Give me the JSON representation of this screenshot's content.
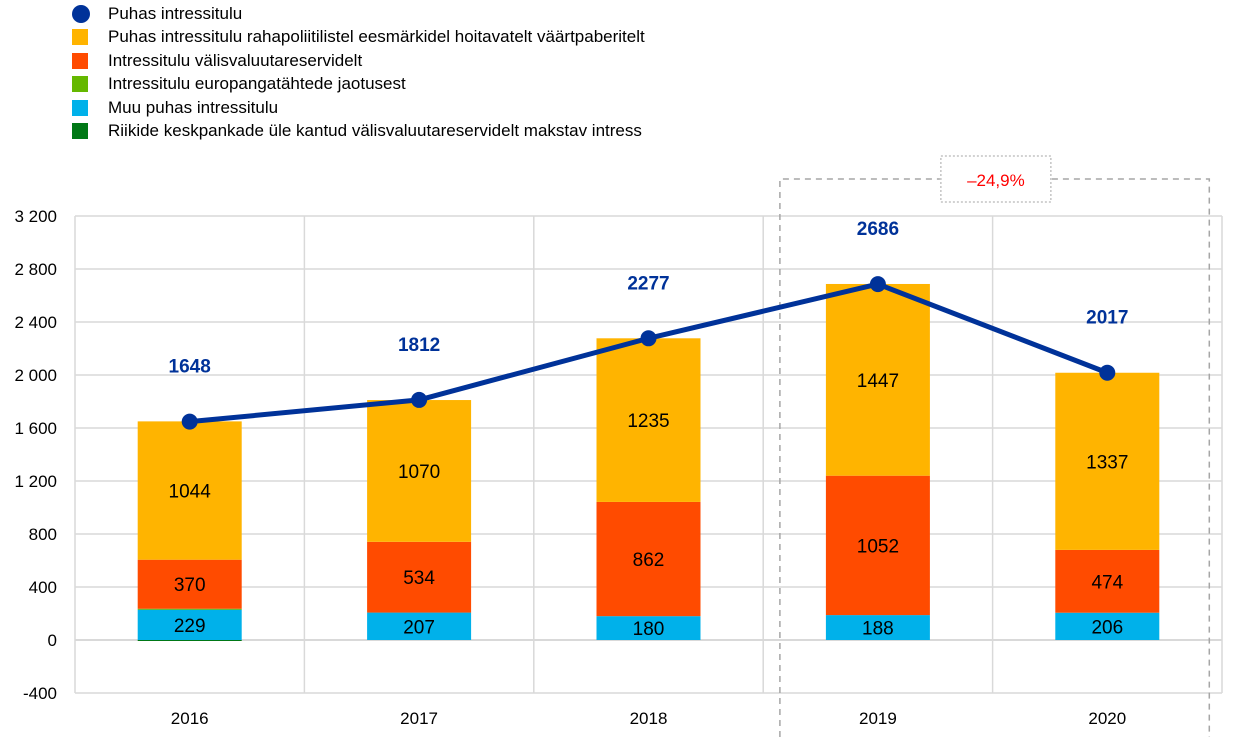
{
  "chart_data": {
    "type": "bar",
    "stacked": true,
    "categories": [
      "2016",
      "2017",
      "2018",
      "2019",
      "2020"
    ],
    "ylim": [
      -400,
      3200
    ],
    "yticks": [
      -400,
      0,
      400,
      800,
      1200,
      1600,
      2000,
      2400,
      2800,
      3200
    ],
    "ytick_labels": [
      "-400",
      "0",
      "400",
      "800",
      "1 200",
      "1 600",
      "2 000",
      "2 400",
      "2 800",
      "3 200"
    ],
    "grid": true,
    "legend_position": "top-left",
    "series": [
      {
        "name": "Muu  puhas intressitulu",
        "color": "#00B1EA",
        "values": [
          229,
          207,
          180,
          188,
          206
        ],
        "labels": [
          "229",
          "207",
          "180",
          "188",
          "206"
        ]
      },
      {
        "name": "Intressitulu europangatähtede jaotusest",
        "color": "#65B800",
        "values": [
          7,
          0,
          0,
          0,
          0
        ]
      },
      {
        "name": "Intressitulu välisvaluutareservidelt",
        "color": "#FF4B00",
        "values": [
          370,
          534,
          862,
          1052,
          474
        ],
        "labels": [
          "370",
          "534",
          "862",
          "1052",
          "474"
        ]
      },
      {
        "name": "Puhas intressitulu rahapoliitilistel eesmärkidel hoitavatelt väärtpaberitelt",
        "color": "#FFB400",
        "values": [
          1044,
          1070,
          1235,
          1447,
          1337
        ],
        "labels": [
          "1044",
          "1070",
          "1235",
          "1447",
          "1337"
        ]
      },
      {
        "name": "Riikide keskpankade üle kantud välisvaluutareservidelt makstav intress",
        "color": "#007816",
        "values": [
          -2,
          0,
          0,
          0,
          0
        ]
      }
    ],
    "line": {
      "name": "Puhas intressitulu",
      "color": "#003299",
      "values": [
        1648,
        1812,
        2277,
        2686,
        2017
      ],
      "labels": [
        "1648",
        "1812",
        "2277",
        "2686",
        "2017"
      ]
    },
    "annotation": {
      "text": "–24,9%",
      "color": "#FF0000",
      "span": [
        "2019",
        "2020"
      ]
    }
  },
  "legend_order": [
    {
      "name": "Puhas intressitulu",
      "color": "#003299",
      "marker": "dot"
    },
    {
      "name": "Puhas intressitulu rahapoliitilistel eesmärkidel hoitavatelt väärtpaberitelt",
      "color": "#FFB400",
      "marker": "square"
    },
    {
      "name": "Intressitulu välisvaluutareservidelt",
      "color": "#FF4B00",
      "marker": "square"
    },
    {
      "name": "Intressitulu europangatähtede jaotusest",
      "color": "#65B800",
      "marker": "square"
    },
    {
      "name": "Muu  puhas intressitulu",
      "color": "#00B1EA",
      "marker": "square"
    },
    {
      "name": "Riikide keskpankade üle kantud välisvaluutareservidelt makstav intress",
      "color": "#007816",
      "marker": "square"
    }
  ]
}
